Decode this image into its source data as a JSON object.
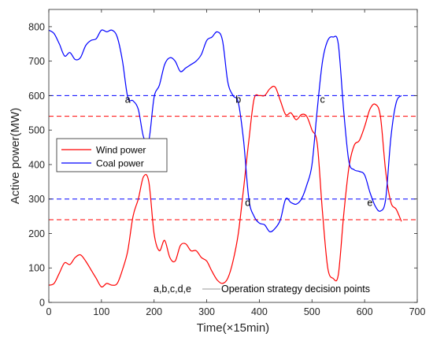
{
  "chart_data": {
    "type": "line",
    "xlabel": "Time(×15min)",
    "ylabel": "Active power(MW)",
    "xlim": [
      0,
      700
    ],
    "ylim": [
      0,
      850
    ],
    "xticks": [
      0,
      100,
      200,
      300,
      400,
      500,
      600,
      700
    ],
    "yticks": [
      0,
      100,
      200,
      300,
      400,
      500,
      600,
      700,
      800
    ],
    "legend_position": "middle-left",
    "grid": false,
    "series": [
      {
        "name": "Wind power",
        "color": "#ff0000",
        "x": [
          0,
          10,
          20,
          30,
          40,
          50,
          60,
          70,
          80,
          90,
          100,
          110,
          120,
          130,
          140,
          150,
          160,
          170,
          180,
          190,
          200,
          210,
          220,
          230,
          240,
          250,
          260,
          270,
          280,
          290,
          300,
          310,
          320,
          330,
          340,
          350,
          360,
          370,
          380,
          390,
          400,
          410,
          420,
          430,
          440,
          450,
          460,
          470,
          480,
          490,
          500,
          510,
          520,
          530,
          540,
          550,
          560,
          570,
          580,
          590,
          600,
          610,
          620,
          630,
          640,
          650,
          660,
          670
        ],
        "values": [
          50,
          55,
          85,
          115,
          110,
          130,
          138,
          120,
          95,
          70,
          45,
          55,
          50,
          55,
          95,
          150,
          250,
          300,
          365,
          350,
          200,
          150,
          180,
          130,
          120,
          165,
          170,
          150,
          150,
          130,
          120,
          90,
          65,
          55,
          70,
          120,
          200,
          330,
          470,
          590,
          600,
          600,
          620,
          625,
          585,
          545,
          550,
          530,
          545,
          540,
          500,
          460,
          260,
          100,
          70,
          80,
          250,
          390,
          455,
          470,
          510,
          560,
          575,
          540,
          380,
          290,
          270,
          235
        ]
      },
      {
        "name": "Coal power",
        "color": "#0000ff",
        "x": [
          0,
          10,
          20,
          30,
          40,
          50,
          60,
          70,
          80,
          90,
          100,
          110,
          120,
          130,
          140,
          150,
          160,
          170,
          180,
          190,
          200,
          210,
          220,
          230,
          240,
          250,
          260,
          270,
          280,
          290,
          300,
          310,
          320,
          330,
          340,
          350,
          360,
          370,
          380,
          390,
          400,
          410,
          420,
          430,
          440,
          450,
          460,
          470,
          480,
          490,
          500,
          510,
          520,
          530,
          540,
          550,
          560,
          570,
          580,
          590,
          600,
          610,
          620,
          630,
          640,
          650,
          660,
          670
        ],
        "values": [
          790,
          780,
          750,
          715,
          725,
          705,
          710,
          745,
          760,
          765,
          790,
          785,
          790,
          770,
          700,
          595,
          585,
          560,
          480,
          470,
          595,
          630,
          690,
          710,
          700,
          670,
          680,
          690,
          700,
          720,
          760,
          770,
          785,
          760,
          640,
          600,
          580,
          470,
          300,
          250,
          230,
          225,
          205,
          215,
          240,
          300,
          290,
          285,
          300,
          340,
          400,
          560,
          700,
          760,
          770,
          750,
          560,
          410,
          385,
          380,
          370,
          320,
          280,
          265,
          300,
          480,
          580,
          600
        ]
      }
    ],
    "reference_lines": [
      {
        "y": 600,
        "color": "#0000ff",
        "style": "dashed"
      },
      {
        "y": 540,
        "color": "#ff0000",
        "style": "dashed"
      },
      {
        "y": 300,
        "color": "#0000ff",
        "style": "dashed"
      },
      {
        "y": 240,
        "color": "#ff0000",
        "style": "dashed"
      }
    ],
    "point_labels": [
      {
        "label": "a",
        "x": 150,
        "y": 600
      },
      {
        "label": "b",
        "x": 360,
        "y": 600
      },
      {
        "label": "c",
        "x": 520,
        "y": 600
      },
      {
        "label": "d",
        "x": 378,
        "y": 300
      },
      {
        "label": "e",
        "x": 610,
        "y": 300
      }
    ],
    "annotation": "a,b,c,d,e",
    "annotation_text": "Operation strategy decision points"
  }
}
